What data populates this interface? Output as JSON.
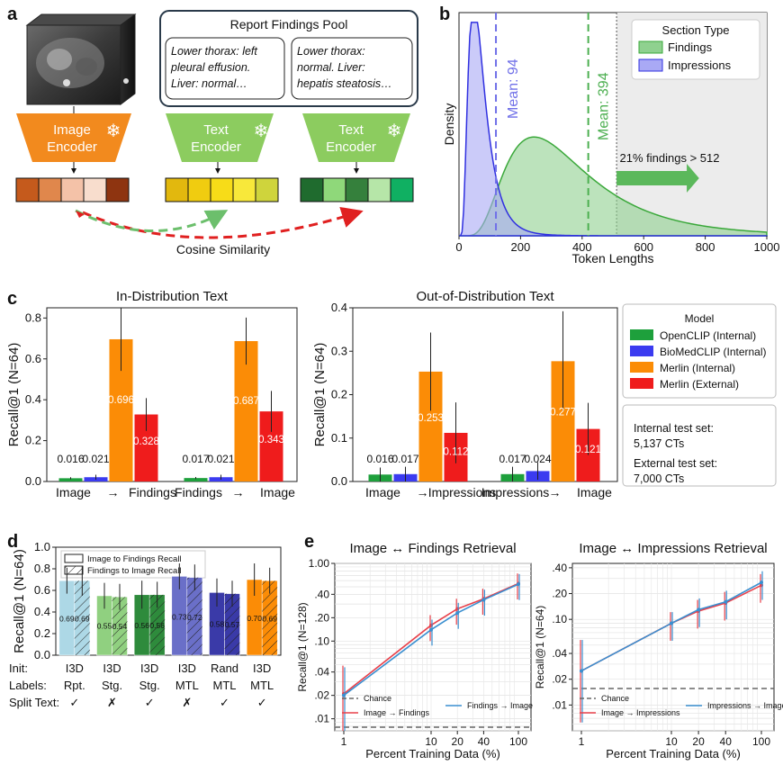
{
  "panel_labels": {
    "a": "a",
    "b": "b",
    "c": "c",
    "d": "d",
    "e": "e"
  },
  "panel_a": {
    "pool_title": "Report Findings Pool",
    "report1": [
      "Lower thorax: left",
      "pleural effusion.",
      "Liver: normal…"
    ],
    "report2": [
      "Lower thorax:",
      "normal. Liver:",
      "hepatis steatosis…"
    ],
    "image_encoder": [
      "Image",
      "Encoder"
    ],
    "text_encoder": [
      "Text",
      "Encoder"
    ],
    "cosine_label": "Cosine Similarity",
    "colors": {
      "image_encoder": "#f28a1e",
      "text_encoder": "#8ccc5f",
      "image_emb": [
        "#c55a1c",
        "#e0874c",
        "#f4c2a8",
        "#f8ddcd",
        "#8e3410"
      ],
      "text_emb_1": [
        "#e2b80e",
        "#f0cc10",
        "#f7dc18",
        "#f8e83a",
        "#cfd43c"
      ],
      "text_emb_2": [
        "#1f6b2e",
        "#8fd87a",
        "#35803c",
        "#b6e6a8",
        "#10b062"
      ]
    }
  },
  "chart_data": [
    {
      "id": "b",
      "type": "area",
      "xlabel": "Token Lengths",
      "ylabel": "Density",
      "xlim": [
        0,
        1000
      ],
      "xticks": [
        "0",
        "200",
        "400",
        "600",
        "800",
        "1000"
      ],
      "legend_title": "Section Type",
      "legend_position": "top-right",
      "series": [
        {
          "name": "Findings",
          "color": "#8fd18f",
          "mean": 394,
          "mean_label": "Mean: 394"
        },
        {
          "name": "Impressions",
          "color": "#a9a9f5",
          "mean": 94,
          "mean_label": "Mean: 94"
        }
      ],
      "shaded_from": 512,
      "annotation": "21% findings > 512"
    },
    {
      "id": "c-left",
      "type": "bar",
      "title": "In-Distribution Text",
      "ylabel": "Recall@1 (N=64)",
      "ylim": [
        0,
        0.85
      ],
      "yticks": [
        "0.0",
        "0.2",
        "0.4",
        "0.6",
        "0.8"
      ],
      "group_labels": [
        [
          "Image",
          "→",
          "Findings"
        ],
        [
          "Findings",
          "→",
          "Image"
        ]
      ],
      "series": [
        {
          "name": "OpenCLIP (Internal)",
          "color": "#1ea03c",
          "values": [
            0.016,
            0.017
          ],
          "errors": [
            0.005,
            0.005
          ]
        },
        {
          "name": "BioMedCLIP (Internal)",
          "color": "#3b3bf0",
          "values": [
            0.021,
            0.021
          ],
          "errors": [
            0.012,
            0.012
          ]
        },
        {
          "name": "Merlin (Internal)",
          "color": "#fb8c06",
          "values": [
            0.696,
            0.687
          ],
          "errors": [
            0.155,
            0.115
          ]
        },
        {
          "name": "Merlin (External)",
          "color": "#ef1c1c",
          "values": [
            0.328,
            0.343
          ],
          "errors": [
            0.08,
            0.1
          ]
        }
      ],
      "labels": [
        [
          "0.016",
          "0.021",
          "0.696",
          "0.328"
        ],
        [
          "0.017",
          "0.021",
          "0.687",
          "0.343"
        ]
      ]
    },
    {
      "id": "c-right",
      "type": "bar",
      "title": "Out-of-Distribution Text",
      "ylabel": "Recall@1 (N=64)",
      "ylim": [
        0,
        0.4
      ],
      "yticks": [
        "0.0",
        "0.1",
        "0.2",
        "0.3",
        "0.4"
      ],
      "group_labels": [
        [
          "Image",
          "→",
          "Impressions"
        ],
        [
          "Impressions",
          "→",
          "Image"
        ]
      ],
      "series": [
        {
          "name": "OpenCLIP (Internal)",
          "color": "#1ea03c",
          "values": [
            0.016,
            0.017
          ],
          "errors": [
            0.016,
            0.017
          ]
        },
        {
          "name": "BioMedCLIP (Internal)",
          "color": "#3b3bf0",
          "values": [
            0.017,
            0.024
          ],
          "errors": [
            0.017,
            0.02
          ]
        },
        {
          "name": "Merlin (Internal)",
          "color": "#fb8c06",
          "values": [
            0.253,
            0.277
          ],
          "errors": [
            0.09,
            0.115
          ]
        },
        {
          "name": "Merlin (External)",
          "color": "#ef1c1c",
          "values": [
            0.112,
            0.121
          ],
          "errors": [
            0.07,
            0.06
          ]
        }
      ],
      "labels": [
        [
          "0.016",
          "0.017",
          "0.253",
          "0.112"
        ],
        [
          "0.017",
          "0.024",
          "0.277",
          "0.121"
        ]
      ]
    },
    {
      "id": "d",
      "type": "bar",
      "ylabel": "Recall@1 (N=64)",
      "ylim": [
        0,
        1
      ],
      "yticks": [
        "0.0",
        "0.2",
        "0.4",
        "0.6",
        "0.8",
        "1.0"
      ],
      "legend": [
        "Image to Findings Recall",
        "Findings to Image Recall"
      ],
      "row_labels": [
        "Init:",
        "Labels:",
        "Split Text:"
      ],
      "models": [
        {
          "color": "#add8e6",
          "init": "I3D",
          "labels": "Rpt.",
          "split": "✓",
          "values": [
            0.69,
            0.69
          ],
          "value_labels": [
            "0.69",
            "0.69"
          ],
          "errors": [
            0.12,
            0.14
          ]
        },
        {
          "color": "#90d080",
          "init": "I3D",
          "labels": "Stg.",
          "split": "✗",
          "values": [
            0.55,
            0.54
          ],
          "value_labels": [
            "0.55",
            "0.54"
          ],
          "errors": [
            0.12,
            0.12
          ]
        },
        {
          "color": "#2e8b3c",
          "init": "I3D",
          "labels": "Stg.",
          "split": "✓",
          "values": [
            0.56,
            0.56
          ],
          "value_labels": [
            "0.56",
            "0.56"
          ],
          "errors": [
            0.13,
            0.12
          ]
        },
        {
          "color": "#6a6fc8",
          "init": "I3D",
          "labels": "MTL",
          "split": "✗",
          "values": [
            0.73,
            0.72
          ],
          "value_labels": [
            "0.73",
            "0.72"
          ],
          "errors": [
            0.12,
            0.12
          ]
        },
        {
          "color": "#3a3aa8",
          "init": "Rand",
          "labels": "MTL",
          "split": "✓",
          "values": [
            0.58,
            0.57
          ],
          "value_labels": [
            "0.58",
            "0.57"
          ],
          "errors": [
            0.13,
            0.12
          ]
        },
        {
          "color": "#fb8c06",
          "init": "I3D",
          "labels": "MTL",
          "split": "✓",
          "values": [
            0.7,
            0.69
          ],
          "value_labels": [
            "0.70",
            "0.69"
          ],
          "errors": [
            0.15,
            0.12
          ]
        }
      ]
    },
    {
      "id": "e-left",
      "type": "line",
      "title": "Image ↔ Findings Retrieval",
      "ylabel": "Recall@1 (N=128)",
      "xlabel": "Percent Training Data (%)",
      "x_scale": "log",
      "y_scale": "log",
      "x": [
        1,
        10,
        20,
        40,
        100
      ],
      "xticks": [
        "1",
        "10",
        "20",
        "40",
        "100"
      ],
      "ylim": [
        0.007,
        1
      ],
      "yticks": [
        ".01",
        ".02",
        ".04",
        ".10",
        ".20",
        ".40",
        "1.00"
      ],
      "chance": 0.0078,
      "series": [
        {
          "name": "Image → Findings",
          "color": "#e8404a",
          "values": [
            0.021,
            0.16,
            0.26,
            0.35,
            0.55
          ]
        },
        {
          "name": "Findings → Image",
          "color": "#3a8fd0",
          "values": [
            0.02,
            0.14,
            0.23,
            0.34,
            0.54
          ]
        }
      ],
      "legend": [
        "Chance",
        "Image → Findings",
        "Findings → Image"
      ]
    },
    {
      "id": "e-right",
      "type": "line",
      "title": "Image ↔ Impressions Retrieval",
      "ylabel": "Recall@1 (N=64)",
      "xlabel": "Percent Training Data (%)",
      "x_scale": "log",
      "y_scale": "log",
      "x": [
        1,
        10,
        20,
        40,
        100
      ],
      "xticks": [
        "1",
        "10",
        "20",
        "40",
        "100"
      ],
      "ylim": [
        0.005,
        0.45
      ],
      "yticks": [
        ".01",
        ".02",
        ".04",
        ".10",
        ".20",
        ".40"
      ],
      "chance": 0.0156,
      "series": [
        {
          "name": "Image → Impressions",
          "color": "#e8404a",
          "values": [
            0.025,
            0.09,
            0.125,
            0.155,
            0.25
          ]
        },
        {
          "name": "Impressions → Image",
          "color": "#3a8fd0",
          "values": [
            0.025,
            0.09,
            0.13,
            0.16,
            0.27
          ]
        }
      ],
      "legend": [
        "Chance",
        "Image → Impressions",
        "Impressions → Image"
      ]
    }
  ]
}
